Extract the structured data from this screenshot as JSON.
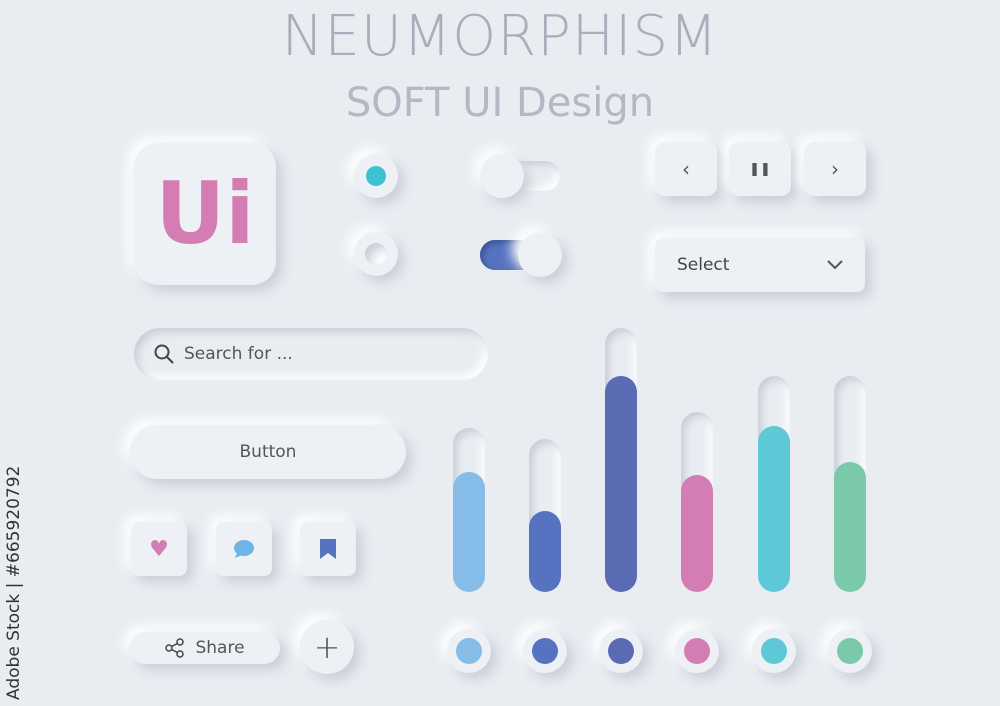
{
  "header": {
    "title": "NEUMORPHISM",
    "subtitle": "SOFT UI Design"
  },
  "logo_tile": {
    "text": "Ui",
    "color": "#d47db3"
  },
  "radios": [
    {
      "checked": true,
      "color": "#3ec1d3"
    },
    {
      "checked": false
    }
  ],
  "toggles": [
    {
      "on": false
    },
    {
      "on": true,
      "color": "#5673c1"
    }
  ],
  "media_controls": {
    "prev_icon": "chevron-left-icon",
    "pause_icon": "pause-icon",
    "next_icon": "chevron-right-icon"
  },
  "select": {
    "label": "Select",
    "icon": "chevron-down-icon"
  },
  "search": {
    "placeholder": "Search for ...",
    "icon": "search-icon"
  },
  "button": {
    "label": "Button"
  },
  "icon_buttons": [
    {
      "icon": "heart-icon",
      "color": "#d47db3"
    },
    {
      "icon": "chat-bubble-icon",
      "color": "#6fb4e8"
    },
    {
      "icon": "bookmark-icon",
      "color": "#5673c1"
    }
  ],
  "share": {
    "label": "Share",
    "icon": "share-icon"
  },
  "add_button": {
    "label": "+",
    "icon": "plus-icon"
  },
  "chart_data": {
    "type": "bar",
    "values_fraction": [
      0.73,
      0.53,
      0.82,
      0.65,
      0.77,
      0.6
    ],
    "track_heights_relative": [
      0.62,
      0.58,
      1.0,
      0.68,
      0.82,
      0.82
    ],
    "colors": [
      "#86bce8",
      "#5673c1",
      "#5a6bb4",
      "#d47db3",
      "#5ec9d6",
      "#79c9aa"
    ]
  },
  "watermark": {
    "text": "Adobe Stock | #665920792"
  }
}
